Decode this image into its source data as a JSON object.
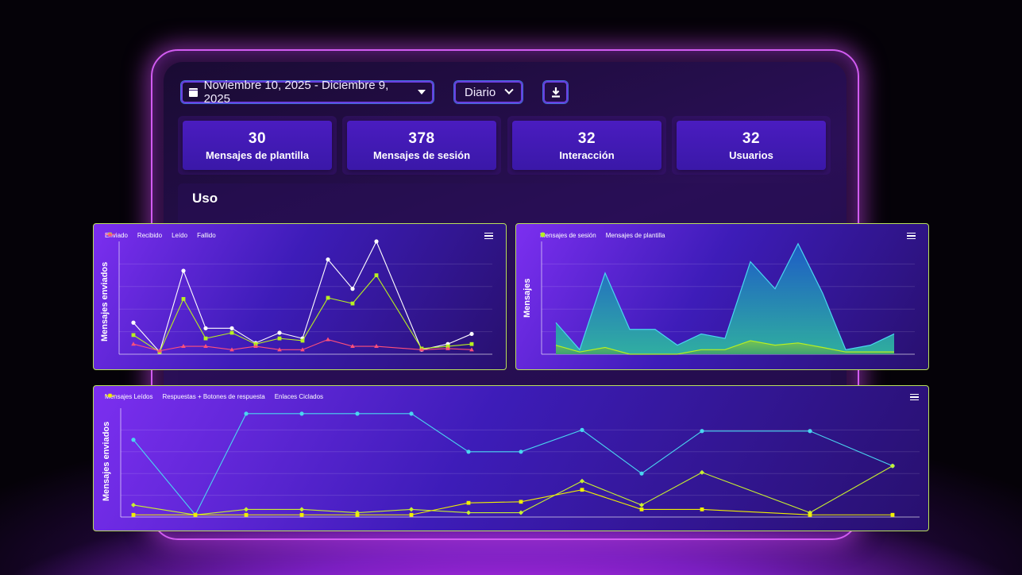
{
  "toolbar": {
    "date_range": "Noviembre 10, 2025 - Diciembre 9, 2025",
    "period": "Diario"
  },
  "kpis": [
    {
      "value": "30",
      "label": "Mensajes de plantilla"
    },
    {
      "value": "378",
      "label": "Mensajes de sesión"
    },
    {
      "value": "32",
      "label": "Interacción"
    },
    {
      "value": "32",
      "label": "Usuarios"
    }
  ],
  "uso": {
    "title": "Uso"
  },
  "colors": {
    "enviado": "#ffffff",
    "recibido": "#4ad6f0",
    "leido": "#b8f020",
    "fallido": "#ff4f7a",
    "sesion": "#4ad6f0",
    "plantilla": "#b8f020",
    "respuestas": "#c8f030",
    "enlaces": "#f0f000"
  },
  "chart_data": [
    {
      "type": "line",
      "ylabel": "Mensajes enviados",
      "x": [
        1,
        2,
        3,
        4,
        5,
        6,
        7,
        8,
        9,
        10,
        11,
        12,
        13,
        14,
        15
      ],
      "ylim": [
        0,
        5
      ],
      "series": [
        {
          "name": "Enviado",
          "color": "#ffffff",
          "values": [
            1.4,
            0.1,
            3.7,
            1.15,
            1.15,
            0.5,
            0.95,
            0.7,
            4.2,
            2.9,
            5,
            0.2,
            0.45,
            0.9,
            null
          ]
        },
        {
          "name": "Recibido",
          "color": "#4ad6f0",
          "values": [
            null,
            null,
            null,
            null,
            null,
            null,
            null,
            null,
            null,
            null,
            null,
            null,
            null,
            null,
            null
          ]
        },
        {
          "name": "Leído",
          "color": "#b8f020",
          "values": [
            0.85,
            0.1,
            2.45,
            0.7,
            0.95,
            0.45,
            0.7,
            0.6,
            2.5,
            2.25,
            3.5,
            0.25,
            0.35,
            0.45,
            null
          ]
        },
        {
          "name": "Fallido",
          "color": "#ff4f7a",
          "values": [
            0.45,
            0.15,
            0.35,
            0.35,
            0.2,
            0.35,
            0.2,
            0.2,
            0.65,
            0.35,
            0.35,
            0.2,
            0.25,
            0.2,
            null
          ]
        }
      ]
    },
    {
      "type": "area",
      "ylabel": "Mensajes",
      "x": [
        1,
        2,
        3,
        4,
        5,
        6,
        7,
        8,
        9,
        10,
        11,
        12,
        13,
        14,
        15
      ],
      "ylim": [
        0,
        50
      ],
      "series": [
        {
          "name": "Mensajes de sesión",
          "color": "#4ad6f0",
          "values": [
            14,
            2,
            36,
            11,
            11,
            4,
            9,
            7,
            41,
            29,
            49,
            27,
            2,
            4,
            9
          ]
        },
        {
          "name": "Mensajes de plantilla",
          "color": "#b8f020",
          "values": [
            4,
            1,
            3,
            0,
            0,
            0,
            2,
            2,
            6,
            4,
            5,
            3,
            1,
            1,
            1
          ]
        }
      ]
    },
    {
      "type": "line",
      "ylabel": "Mensajes enviados",
      "x": [
        1,
        2,
        3,
        4,
        5,
        6,
        7,
        8,
        9,
        10,
        11,
        12,
        13
      ],
      "ylim": [
        0,
        5
      ],
      "series": [
        {
          "name": "Mensajes Leídos",
          "color": "#4ad6f0",
          "values": [
            3.55,
            0.1,
            4.75,
            4.75,
            4.75,
            4.75,
            3,
            3,
            4,
            2,
            3.95,
            3.95,
            2.35
          ]
        },
        {
          "name": "Respuestas + Botones de respuesta",
          "color": "#c8f030",
          "values": [
            0.55,
            0.1,
            0.35,
            0.35,
            0.2,
            0.35,
            0.2,
            0.2,
            1.65,
            0.55,
            2.05,
            0.2,
            2.35
          ]
        },
        {
          "name": "Enlaces Ciclados",
          "color": "#f0f000",
          "values": [
            0.1,
            0.1,
            0.1,
            0.1,
            0.1,
            0.1,
            0.65,
            0.7,
            1.25,
            0.35,
            0.35,
            0.1,
            0.1
          ]
        }
      ]
    }
  ]
}
